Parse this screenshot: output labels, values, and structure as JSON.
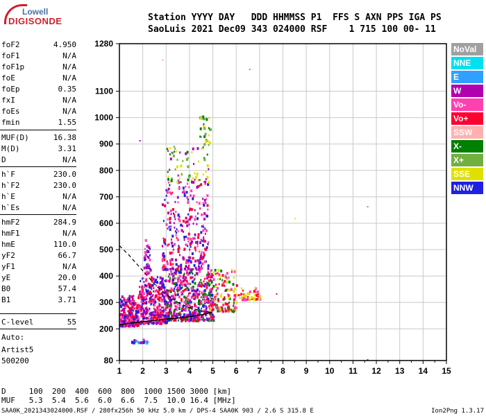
{
  "logo": {
    "top": "Lowell",
    "main": "DIGISONDE"
  },
  "header": {
    "line1": "Station YYYY DAY   DDD HHMMSS P1  FFS S AXN PPS IGA PS",
    "line2": "SaoLuis 2021 Dec09 343 024000 RSF    1 715 100 00- 11"
  },
  "params": [
    {
      "k": "foF2",
      "v": "4.950"
    },
    {
      "k": "foF1",
      "v": "N/A"
    },
    {
      "k": "foF1p",
      "v": "N/A"
    },
    {
      "k": "foE",
      "v": "N/A"
    },
    {
      "k": "foEp",
      "v": "0.35"
    },
    {
      "k": "fxI",
      "v": "N/A"
    },
    {
      "k": "foEs",
      "v": "N/A"
    },
    {
      "k": "fmin",
      "v": "1.55"
    },
    {
      "k": "MUF(D)",
      "v": "16.38"
    },
    {
      "k": "M(D)",
      "v": "3.31"
    },
    {
      "k": "D",
      "v": "N/A"
    },
    {
      "k": "h`F",
      "v": "230.0"
    },
    {
      "k": "h`F2",
      "v": "230.0"
    },
    {
      "k": "h`E",
      "v": "N/A"
    },
    {
      "k": "h`Es",
      "v": "N/A"
    },
    {
      "k": "hmF2",
      "v": "284.9"
    },
    {
      "k": "hmF1",
      "v": "N/A"
    },
    {
      "k": "hmE",
      "v": "110.0"
    },
    {
      "k": "yF2",
      "v": "66.7"
    },
    {
      "k": "yF1",
      "v": "N/A"
    },
    {
      "k": "yE",
      "v": "20.0"
    },
    {
      "k": "B0",
      "v": "57.4"
    },
    {
      "k": "B1",
      "v": "3.71"
    },
    {
      "k": "C-level",
      "v": "55"
    }
  ],
  "side_notes": {
    "auto": "Auto:",
    "artist": "Artist5",
    "code": "500200"
  },
  "legend": [
    {
      "label": "NoVal",
      "color": "#a0a0a0"
    },
    {
      "label": "NNE",
      "color": "#00e0f0"
    },
    {
      "label": "E",
      "color": "#30a0ff"
    },
    {
      "label": "W",
      "color": "#b000b0"
    },
    {
      "label": "Vo-",
      "color": "#ff40b0"
    },
    {
      "label": "Vo+",
      "color": "#ff0030"
    },
    {
      "label": "SSW",
      "color": "#ffb0b0"
    },
    {
      "label": "X-",
      "color": "#008000"
    },
    {
      "label": "X+",
      "color": "#70b040"
    },
    {
      "label": "SSE",
      "color": "#e0e000"
    },
    {
      "label": "NNW",
      "color": "#2020e0"
    }
  ],
  "muf_table": {
    "d_line": "D     100  200  400  600  800  1000 1500 3000 [km]",
    "muf_line": "MUF   5.3  5.4  5.6  6.0  6.6  7.5  10.0 16.4 [MHz]"
  },
  "footer": {
    "left": "SAA0K_2021343024000.RSF / 280fx256h 50 kHz 5.0 km / DPS-4 SAA0K 903 / 2.6 S 315.8 E",
    "right": "Ion2Png 1.3.17"
  },
  "chart_data": {
    "type": "scatter",
    "title": "",
    "xlabel": "",
    "ylabel": "",
    "xlim": [
      1,
      15
    ],
    "ylim": [
      80,
      1280
    ],
    "x_ticks": [
      1,
      2,
      3,
      4,
      5,
      6,
      7,
      8,
      9,
      10,
      11,
      12,
      13,
      14,
      15
    ],
    "y_ticks": [
      80,
      200,
      300,
      400,
      500,
      600,
      700,
      800,
      900,
      1000,
      1100,
      1280
    ],
    "grid": true,
    "profile_curve": {
      "style": "solid",
      "points": [
        [
          1.0,
          215
        ],
        [
          1.5,
          222
        ],
        [
          2.0,
          227
        ],
        [
          2.5,
          232
        ],
        [
          3.0,
          237
        ],
        [
          3.5,
          241
        ],
        [
          4.0,
          246
        ],
        [
          4.5,
          253
        ],
        [
          4.95,
          262
        ]
      ]
    },
    "dashed_curve": {
      "style": "dashed",
      "points": [
        [
          1.0,
          515
        ],
        [
          1.4,
          480
        ],
        [
          1.8,
          440
        ],
        [
          2.2,
          400
        ],
        [
          2.6,
          360
        ],
        [
          3.0,
          330
        ],
        [
          3.5,
          300
        ],
        [
          4.0,
          280
        ],
        [
          4.5,
          268
        ],
        [
          4.95,
          262
        ]
      ]
    },
    "echo_clusters": [
      {
        "x_range": [
          1.0,
          1.8
        ],
        "y_range": [
          215,
          330
        ],
        "colors": [
          "#2020e0",
          "#ff40b0",
          "#ff0030",
          "#b000b0"
        ],
        "count": 260
      },
      {
        "x_range": [
          1.8,
          3.0
        ],
        "y_range": [
          225,
          400
        ],
        "colors": [
          "#2020e0",
          "#ff40b0",
          "#b000b0",
          "#ff0030"
        ],
        "count": 380
      },
      {
        "x_range": [
          3.0,
          5.0
        ],
        "y_range": [
          235,
          430
        ],
        "colors": [
          "#ff40b0",
          "#b000b0",
          "#2020e0",
          "#ff0030",
          "#008000"
        ],
        "count": 520
      },
      {
        "x_range": [
          2.8,
          4.8
        ],
        "y_range": [
          430,
          760
        ],
        "colors": [
          "#ff40b0",
          "#b000b0",
          "#ff0030",
          "#2020e0"
        ],
        "count": 300
      },
      {
        "x_range": [
          3.0,
          4.8
        ],
        "y_range": [
          760,
          900
        ],
        "colors": [
          "#e0e000",
          "#008000",
          "#70b040",
          "#b000b0"
        ],
        "count": 70
      },
      {
        "x_range": [
          4.4,
          4.9
        ],
        "y_range": [
          900,
          1010
        ],
        "colors": [
          "#e0e000",
          "#008000",
          "#70b040"
        ],
        "count": 30
      },
      {
        "x_range": [
          4.8,
          6.0
        ],
        "y_range": [
          270,
          430
        ],
        "colors": [
          "#008000",
          "#ff0030",
          "#ff40b0",
          "#e0e000"
        ],
        "count": 160
      },
      {
        "x_range": [
          5.8,
          7.0
        ],
        "y_range": [
          315,
          360
        ],
        "colors": [
          "#ff0030",
          "#ff40b0",
          "#e0e000"
        ],
        "count": 60
      },
      {
        "x_range": [
          1.5,
          2.2
        ],
        "y_range": [
          150,
          165
        ],
        "colors": [
          "#2020e0",
          "#30a0ff",
          "#b000b0"
        ],
        "count": 25
      },
      {
        "x_range": [
          2.0,
          2.3
        ],
        "y_range": [
          415,
          540
        ],
        "colors": [
          "#2020e0",
          "#b000b0",
          "#ff40b0"
        ],
        "count": 40
      }
    ],
    "outliers": [
      {
        "x": 2.82,
        "y": 1220,
        "color": "#ffb0b0"
      },
      {
        "x": 6.55,
        "y": 1185,
        "color": "#30a0ff"
      },
      {
        "x": 8.5,
        "y": 620,
        "color": "#e0e000"
      },
      {
        "x": 11.6,
        "y": 665,
        "color": "#70b040"
      },
      {
        "x": 11.6,
        "y": 85,
        "color": "#b000b0"
      },
      {
        "x": 7.7,
        "y": 335,
        "color": "#ff0030"
      },
      {
        "x": 1.85,
        "y": 915,
        "color": "#b000b0"
      }
    ]
  }
}
